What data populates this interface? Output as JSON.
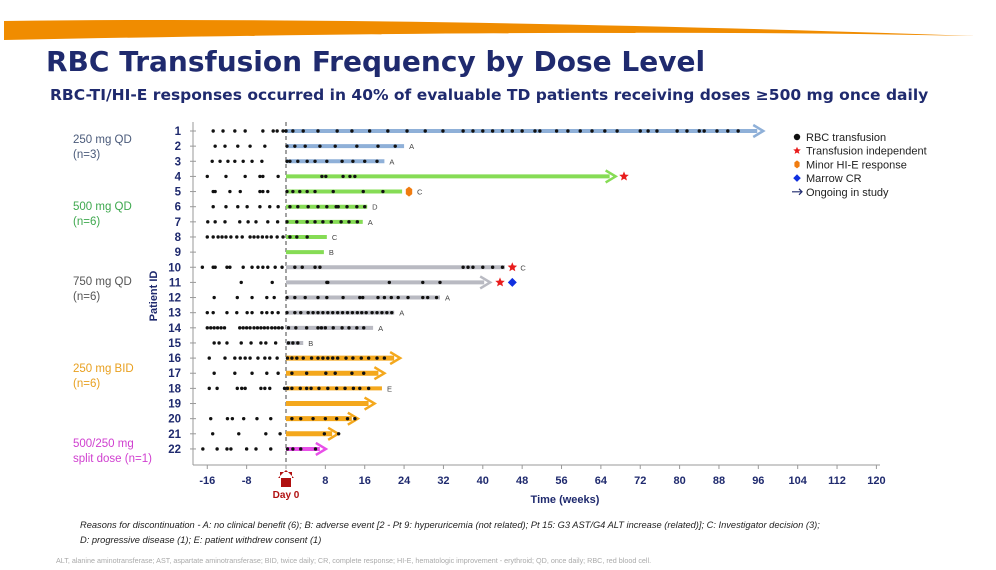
{
  "header": {
    "title": "RBC Transfusion Frequency by Dose Level",
    "subtitle": "RBC-TI/HI-E responses occurred in 40% of evaluable TD patients receiving doses ≥500 mg once daily"
  },
  "colors": {
    "accent_swoosh": "#f08c00",
    "title": "#1f2a6e",
    "grp_250qd": "#8fb0d8",
    "grp_500qd": "#86dc55",
    "grp_750qd": "#b9bac2",
    "grp_250bid": "#f4a81d",
    "grp_split": "#e84fe8"
  },
  "groups": [
    {
      "key": "grp_250qd",
      "line1": "250 mg QD",
      "line2": "(n=3)",
      "text_color": "#4a5a7a"
    },
    {
      "key": "grp_500qd",
      "line1": "500 mg QD",
      "line2": "(n=6)",
      "text_color": "#3ea84e"
    },
    {
      "key": "grp_750qd",
      "line1": "750 mg QD",
      "line2": "(n=6)",
      "text_color": "#555555"
    },
    {
      "key": "grp_250bid",
      "line1": "250 mg BID",
      "line2": "(n=6)",
      "text_color": "#e8a020"
    },
    {
      "key": "grp_split",
      "line1": "500/250 mg",
      "line2": "split dose (n=1)",
      "text_color": "#d040d0"
    }
  ],
  "legend": [
    {
      "icon": "circle-icon",
      "label": "RBC transfusion",
      "color": "#111111"
    },
    {
      "icon": "star-icon",
      "label": "Transfusion independent",
      "color": "#e81c1c"
    },
    {
      "icon": "hexagon-icon",
      "label": "Minor HI-E response",
      "color": "#f07c10"
    },
    {
      "icon": "diamond-icon",
      "label": "Marrow CR",
      "color": "#1030e0"
    },
    {
      "icon": "arrow-icon",
      "label": "Ongoing in study",
      "color": "#1f2a6e"
    }
  ],
  "day0_label": "Day 0",
  "footnote": {
    "line1": "Reasons for discontinuation - A: no clinical benefit (6); B: adverse event [2 - Pt 9: hyperuricemia (not related); Pt 15: G3 AST/G4 ALT increase (related)]; C: Investigator decision (3);",
    "line2": "D: progressive disease (1); E: patient withdrew consent (1)",
    "abbreviations": "ALT, alanine aminotransferase; AST, aspartate aminotransferase; BID, twice daily; CR, complete response; HI-E, hematologic improvement - erythroid; QD, once daily; RBC, red blood cell."
  },
  "chart_data": {
    "type": "swimmer",
    "title": "RBC Transfusion Frequency by Dose Level",
    "xlabel": "Time (weeks)",
    "ylabel": "Patient ID",
    "xlim": [
      -16,
      120
    ],
    "xticks": [
      -16,
      -8,
      0,
      8,
      16,
      24,
      32,
      40,
      48,
      56,
      64,
      72,
      80,
      88,
      96,
      104,
      112,
      120
    ],
    "xtick_labels": [
      "-16",
      "-8",
      "",
      "8",
      "16",
      "24",
      "32",
      "40",
      "48",
      "56",
      "64",
      "72",
      "80",
      "88",
      "96",
      "104",
      "112",
      "120"
    ],
    "rows": [
      {
        "id": "1",
        "group": "grp_250qd",
        "end": 97,
        "ongoing": true,
        "reason": "",
        "markers": [],
        "transfusions": [
          -14.8,
          -12.8,
          -10.4,
          -8.3,
          -4.7,
          -2.6,
          -1.8,
          -0.6,
          0,
          1.4,
          3.5,
          6.5,
          10.4,
          13.4,
          17,
          20.7,
          24.6,
          28.3,
          31.9,
          36,
          38,
          40,
          42,
          44,
          46,
          48,
          50.6,
          51.6,
          55,
          57.3,
          59.8,
          62.2,
          64.8,
          67.3,
          72,
          73.6,
          75.4,
          79.5,
          81.5,
          84,
          85,
          87.6,
          89.8,
          91.9
        ]
      },
      {
        "id": "2",
        "group": "grp_250qd",
        "end": 24,
        "ongoing": false,
        "reason": "A",
        "markers": [],
        "transfusions": [
          -14.4,
          -12.4,
          -9.8,
          -7.3,
          -4.3,
          0.2,
          1.8,
          3.9,
          6.9,
          10,
          14.4,
          18.7,
          22.2
        ]
      },
      {
        "id": "3",
        "group": "grp_250qd",
        "end": 20,
        "ongoing": false,
        "reason": "A",
        "markers": [],
        "transfusions": [
          -15,
          -13.4,
          -11.8,
          -10.4,
          -8.7,
          -6.9,
          -4.9,
          0.2,
          0.8,
          2.4,
          4.3,
          5.9,
          8.3,
          11.4,
          13.6,
          16,
          18.5
        ]
      },
      {
        "id": "4",
        "group": "grp_500qd",
        "end": 67,
        "ongoing": true,
        "reason": "",
        "markers": [
          {
            "type": "star",
            "week": 68.7
          }
        ],
        "transfusions": [
          -16,
          -12.2,
          -8.3,
          -5.3,
          -4.7,
          -1.6,
          7.3,
          8.1,
          11.6,
          13,
          14
        ]
      },
      {
        "id": "5",
        "group": "grp_500qd",
        "end": 23.6,
        "ongoing": false,
        "reason": "C",
        "markers": [
          {
            "type": "hexagon",
            "week": 25
          }
        ],
        "transfusions": [
          -14.8,
          -14.4,
          -11.4,
          -9.3,
          -5.3,
          -4.7,
          -3.7,
          0.2,
          1.4,
          2.8,
          4.3,
          5.9,
          9.6,
          15.7,
          19.7
        ]
      },
      {
        "id": "6",
        "group": "grp_500qd",
        "end": 16.5,
        "ongoing": false,
        "reason": "D",
        "markers": [],
        "transfusions": [
          -14.8,
          -12.2,
          -9.8,
          -7.9,
          -5.3,
          -3.3,
          -1.6,
          0.8,
          2.4,
          4.5,
          6.5,
          8.3,
          10.2,
          10.6,
          12.4,
          14.4,
          16
        ]
      },
      {
        "id": "7",
        "group": "grp_500qd",
        "end": 15.6,
        "ongoing": false,
        "reason": "A",
        "markers": [],
        "transfusions": [
          -15.9,
          -14.4,
          -12.4,
          -9.4,
          -7.7,
          -6.1,
          -3.7,
          -1.7,
          0.2,
          2.2,
          4.3,
          5.9,
          7.5,
          9.2,
          11.2,
          12.8,
          14.5
        ]
      },
      {
        "id": "8",
        "group": "grp_500qd",
        "end": 8.3,
        "ongoing": false,
        "reason": "C",
        "markers": [],
        "transfusions": [
          -16,
          -14.8,
          -13.8,
          -13,
          -12.2,
          -11.2,
          -10,
          -8.9,
          -7.3,
          -6.5,
          -5.7,
          -4.8,
          -3.9,
          -3,
          -1.8,
          -0.6,
          0.8,
          2.2,
          4.3
        ]
      },
      {
        "id": "9",
        "group": "grp_500qd",
        "end": 7.7,
        "ongoing": false,
        "reason": "B",
        "markers": [],
        "transfusions": []
      },
      {
        "id": "10",
        "group": "grp_750qd",
        "end": 44.5,
        "ongoing": false,
        "reason": "C",
        "markers": [
          {
            "type": "star",
            "week": 46
          }
        ],
        "transfusions": [
          -17,
          -14.8,
          -14.4,
          -12,
          -11.4,
          -8.7,
          -6.9,
          -5.7,
          -4.7,
          -3.7,
          -2.2,
          -0.8,
          1.8,
          3.3,
          5.9,
          6.9,
          36,
          37,
          38,
          40,
          42,
          44
        ]
      },
      {
        "id": "11",
        "group": "grp_750qd",
        "end": 41.5,
        "ongoing": true,
        "reason": "",
        "markers": [
          {
            "type": "star",
            "week": 43.5
          },
          {
            "type": "diamond",
            "week": 46
          }
        ],
        "transfusions": [
          -9.1,
          -2.8,
          8.3,
          8.5,
          21,
          27.8,
          31.3
        ]
      },
      {
        "id": "12",
        "group": "grp_750qd",
        "end": 31.3,
        "ongoing": false,
        "reason": "A",
        "markers": [],
        "transfusions": [
          -14.6,
          -9.9,
          -6.9,
          -3.9,
          -2.4,
          0.2,
          1.8,
          3.9,
          6.5,
          8.3,
          11.6,
          15,
          15.6,
          18.7,
          20,
          21.4,
          22.8,
          24.8,
          27.8,
          28.8,
          30.6
        ]
      },
      {
        "id": "13",
        "group": "grp_750qd",
        "end": 22,
        "ongoing": false,
        "reason": "A",
        "markers": [],
        "transfusions": [
          -16,
          -14.8,
          -12,
          -10,
          -7.9,
          -6.9,
          -4.9,
          -3.9,
          -2.8,
          -1.6,
          0.2,
          1.8,
          3,
          4.5,
          5.5,
          6.5,
          7.5,
          8.5,
          9.5,
          10.5,
          11.5,
          12.5,
          13.5,
          14.5,
          15.4,
          16.3,
          17.5,
          18.5,
          19.5,
          20.5,
          21.5
        ]
      },
      {
        "id": "14",
        "group": "grp_750qd",
        "end": 17.7,
        "ongoing": false,
        "reason": "A",
        "markers": [],
        "transfusions": [
          -16,
          -15.3,
          -14.6,
          -13.9,
          -13.2,
          -12.5,
          -9.4,
          -8.7,
          -8,
          -7.3,
          -6.5,
          -5.8,
          -5.1,
          -4.4,
          -3.7,
          -2.9,
          -2.2,
          -1.5,
          -0.8,
          0.5,
          2,
          4.2,
          6.5,
          7.2,
          8,
          9.6,
          11.4,
          12.8,
          14.4,
          15.8
        ]
      },
      {
        "id": "15",
        "group": "grp_750qd",
        "end": 3.5,
        "ongoing": false,
        "reason": "B",
        "markers": [],
        "transfusions": [
          -14.6,
          -13.6,
          -12,
          -9.1,
          -7.1,
          -5.1,
          -4.1,
          -2.1,
          0.5,
          1.4,
          2.4
        ]
      },
      {
        "id": "16",
        "group": "grp_250bid",
        "end": 23.2,
        "ongoing": true,
        "reason": "",
        "markers": [],
        "transfusions": [
          -15.6,
          -12.4,
          -10.4,
          -9.3,
          -8.3,
          -7.3,
          -5.7,
          -4.3,
          -3.3,
          -1.8,
          0.3,
          1.2,
          2.2,
          3.5,
          5.2,
          6.5,
          7.5,
          8.5,
          9.5,
          10.5,
          12.2,
          13.6,
          15.3,
          16.8,
          18.5,
          20
        ]
      },
      {
        "id": "17",
        "group": "grp_250bid",
        "end": 20,
        "ongoing": true,
        "reason": "",
        "markers": [],
        "transfusions": [
          -14.6,
          -10.4,
          -6.9,
          -3.9,
          -1.6,
          1.2,
          4.2,
          8.1,
          10,
          13.4,
          15.8
        ]
      },
      {
        "id": "18",
        "group": "grp_250bid",
        "end": 19.5,
        "ongoing": false,
        "reason": "E",
        "markers": [],
        "transfusions": [
          -15.6,
          -14,
          -9.9,
          -9,
          -8.3,
          -5.1,
          -4.3,
          -3.3,
          -0.3,
          0.3,
          1.2,
          2.9,
          4.2,
          5.1,
          6.7,
          8.5,
          10.3,
          12,
          13.7,
          15,
          16.8
        ]
      },
      {
        "id": "19",
        "group": "grp_250bid",
        "end": 18,
        "ongoing": true,
        "reason": "",
        "markers": [],
        "transfusions": []
      },
      {
        "id": "20",
        "group": "grp_250bid",
        "end": 14.6,
        "ongoing": true,
        "reason": "",
        "markers": [],
        "transfusions": [
          -15.3,
          -11.9,
          -10.9,
          -8.6,
          -5.9,
          -3.1,
          1.2,
          3,
          5.5,
          8,
          10.3,
          12.5,
          14
        ]
      },
      {
        "id": "21",
        "group": "grp_250bid",
        "end": 10.6,
        "ongoing": true,
        "reason": "",
        "markers": [],
        "transfusions": [
          -14.9,
          -9.6,
          -4.1,
          -1.2,
          7.8,
          10.7
        ]
      },
      {
        "id": "22",
        "group": "grp_split",
        "end": 8.1,
        "ongoing": true,
        "reason": "",
        "markers": [],
        "transfusions": [
          -16.9,
          -14,
          -12,
          -11.2,
          -8,
          -6.1,
          -3.1,
          0.3,
          1.4,
          3,
          6
        ]
      }
    ]
  }
}
